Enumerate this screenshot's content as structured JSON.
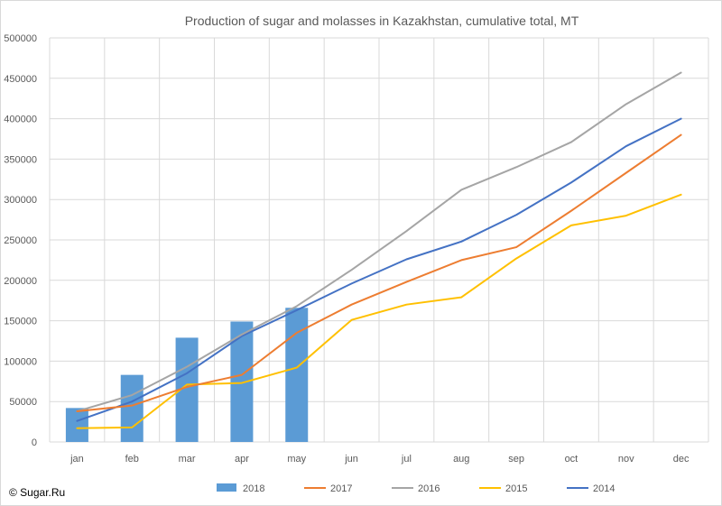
{
  "chart_data": {
    "type": "bar",
    "title": "Production of sugar and molasses in Kazakhstan, cumulative total, MT",
    "xlabel": "",
    "ylabel": "",
    "categories": [
      "jan",
      "feb",
      "mar",
      "apr",
      "may",
      "jun",
      "jul",
      "aug",
      "sep",
      "oct",
      "nov",
      "dec"
    ],
    "ylim": [
      0,
      500000
    ],
    "yticks": [
      "0",
      "50000",
      "100000",
      "150000",
      "200000",
      "250000",
      "300000",
      "350000",
      "400000",
      "450000",
      "500000"
    ],
    "grid": true,
    "legend_position": "bottom",
    "bar_series": {
      "name": "2018",
      "color": "#5B9BD5",
      "values": [
        42000,
        83000,
        129000,
        149000,
        166000,
        null,
        null,
        null,
        null,
        null,
        null,
        null
      ]
    },
    "series": [
      {
        "name": "2017",
        "color": "#ED7D31",
        "values": [
          38000,
          45000,
          68000,
          83000,
          135000,
          170000,
          198000,
          225000,
          241000,
          286000,
          333000,
          380000
        ]
      },
      {
        "name": "2016",
        "color": "#A5A5A5",
        "values": [
          38000,
          58000,
          93000,
          133000,
          168000,
          213000,
          261000,
          312000,
          340000,
          371000,
          418000,
          457000
        ]
      },
      {
        "name": "2015",
        "color": "#FFC000",
        "values": [
          17000,
          18000,
          71000,
          73000,
          92000,
          151000,
          170000,
          179000,
          227000,
          268000,
          280000,
          306000
        ]
      },
      {
        "name": "2014",
        "color": "#4472C4",
        "values": [
          26000,
          50000,
          85000,
          131000,
          163000,
          196000,
          226000,
          248000,
          281000,
          321000,
          366000,
          400000
        ]
      }
    ],
    "legend": [
      "2018",
      "2017",
      "2016",
      "2015",
      "2014"
    ]
  },
  "credit": "© Sugar.Ru"
}
